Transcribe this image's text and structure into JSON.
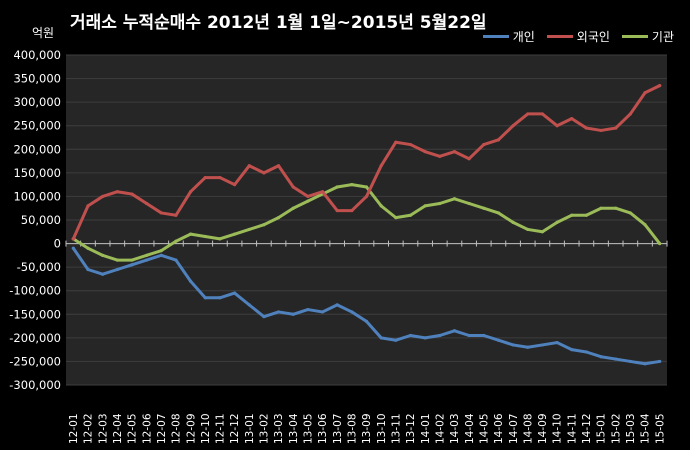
{
  "title": "거래소 누적순매수 2012년 1월 1일~2015년 5월22일",
  "unit_label": "억원",
  "colors": {
    "background": "#000000",
    "plot_area": "#262626",
    "grid": "#3e3e3e",
    "individual": "#4f81bd",
    "foreign": "#c0504d",
    "institution": "#9bbb59"
  },
  "chart_data": {
    "type": "line",
    "title": "거래소 누적순매수 2012년 1월 1일~2015년 5월22일",
    "ylabel": "억원",
    "xlabel": "",
    "ylim": [
      -300000,
      400000
    ],
    "yticks": [
      400000,
      350000,
      300000,
      250000,
      200000,
      150000,
      100000,
      50000,
      0,
      -50000,
      -100000,
      -150000,
      -200000,
      -250000,
      -300000
    ],
    "ytick_labels": [
      "400,000",
      "350,000",
      "300,000",
      "250,000",
      "200,000",
      "150,000",
      "100,000",
      "50,000",
      "0",
      "-50,000",
      "-100,000",
      "-150,000",
      "-200,000",
      "-250,000",
      "-300,000"
    ],
    "x": [
      "12-01",
      "12-02",
      "12-03",
      "12-04",
      "12-05",
      "12-06",
      "12-07",
      "12-08",
      "12-09",
      "12-10",
      "12-11",
      "12-12",
      "13-01",
      "13-02",
      "13-03",
      "13-04",
      "13-05",
      "13-06",
      "13-07",
      "13-08",
      "13-09",
      "13-10",
      "13-11",
      "13-12",
      "14-01",
      "14-02",
      "14-03",
      "14-04",
      "14-05",
      "14-06",
      "14-07",
      "14-08",
      "14-09",
      "14-10",
      "14-11",
      "14-12",
      "15-01",
      "15-02",
      "15-03",
      "15-04",
      "15-05"
    ],
    "grid": true,
    "legend_position": "top-right",
    "series": [
      {
        "name": "개인",
        "color": "#4f81bd",
        "values": [
          -10000,
          -55000,
          -65000,
          -55000,
          -45000,
          -35000,
          -25000,
          -35000,
          -80000,
          -115000,
          -115000,
          -105000,
          -130000,
          -155000,
          -145000,
          -150000,
          -140000,
          -145000,
          -130000,
          -145000,
          -165000,
          -200000,
          -205000,
          -195000,
          -200000,
          -195000,
          -185000,
          -195000,
          -195000,
          -205000,
          -215000,
          -220000,
          -215000,
          -210000,
          -225000,
          -230000,
          -240000,
          -245000,
          -250000,
          -255000,
          -250000
        ]
      },
      {
        "name": "외국인",
        "color": "#c0504d",
        "values": [
          10000,
          80000,
          100000,
          110000,
          105000,
          85000,
          65000,
          60000,
          110000,
          140000,
          140000,
          125000,
          165000,
          150000,
          165000,
          120000,
          100000,
          110000,
          70000,
          70000,
          100000,
          165000,
          215000,
          210000,
          195000,
          185000,
          195000,
          180000,
          210000,
          220000,
          250000,
          275000,
          275000,
          250000,
          265000,
          245000,
          240000,
          245000,
          275000,
          320000,
          335000
        ]
      },
      {
        "name": "기관",
        "color": "#9bbb59",
        "values": [
          10000,
          -10000,
          -25000,
          -35000,
          -35000,
          -25000,
          -15000,
          5000,
          20000,
          15000,
          10000,
          20000,
          30000,
          40000,
          55000,
          75000,
          90000,
          105000,
          120000,
          125000,
          120000,
          80000,
          55000,
          60000,
          80000,
          85000,
          95000,
          85000,
          75000,
          65000,
          45000,
          30000,
          25000,
          45000,
          60000,
          60000,
          75000,
          75000,
          65000,
          40000,
          0
        ]
      }
    ]
  }
}
